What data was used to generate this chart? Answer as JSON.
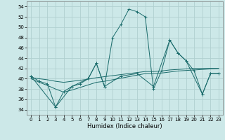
{
  "xlabel": "Humidex (Indice chaleur)",
  "ylabel": "",
  "xlim": [
    -0.5,
    23.5
  ],
  "ylim": [
    33,
    55
  ],
  "yticks": [
    34,
    36,
    38,
    40,
    42,
    44,
    46,
    48,
    50,
    52,
    54
  ],
  "xticks": [
    0,
    1,
    2,
    3,
    4,
    5,
    6,
    7,
    8,
    9,
    10,
    11,
    12,
    13,
    14,
    15,
    16,
    17,
    18,
    19,
    20,
    21,
    22,
    23
  ],
  "bg_color": "#cce8e8",
  "grid_color": "#b0d0d0",
  "line_color": "#1a6b6b",
  "line1_x": [
    0,
    1,
    2,
    3,
    4,
    5,
    6,
    7,
    8,
    9,
    10,
    11,
    12,
    13,
    14,
    15,
    16,
    17,
    18,
    19,
    20,
    21,
    22,
    23
  ],
  "line1_y": [
    40.5,
    39.5,
    39.0,
    34.5,
    37.5,
    38.5,
    39.0,
    40.0,
    43.0,
    38.5,
    48.0,
    50.5,
    53.5,
    53.0,
    52.0,
    38.0,
    41.5,
    47.5,
    45.0,
    43.5,
    41.5,
    37.0,
    41.0,
    41.0
  ],
  "line2_x": [
    0,
    1,
    2,
    3,
    4,
    5,
    6,
    7,
    8,
    9,
    10,
    11,
    12,
    13,
    14,
    15,
    16,
    17,
    18,
    19,
    20,
    21,
    22,
    23
  ],
  "line2_y": [
    40.2,
    40.0,
    39.8,
    39.5,
    39.3,
    39.5,
    39.7,
    39.9,
    40.2,
    40.4,
    40.6,
    40.8,
    41.0,
    41.2,
    41.4,
    41.4,
    41.5,
    41.7,
    41.8,
    41.9,
    42.0,
    42.0,
    42.0,
    42.0
  ],
  "line3_x": [
    0,
    1,
    2,
    3,
    4,
    5,
    6,
    7,
    8,
    9,
    10,
    11,
    12,
    13,
    14,
    15,
    16,
    17,
    18,
    19,
    20,
    21,
    22,
    23
  ],
  "line3_y": [
    40.0,
    39.3,
    38.7,
    38.0,
    37.4,
    37.8,
    38.3,
    38.8,
    39.3,
    39.5,
    39.8,
    40.1,
    40.4,
    40.7,
    41.0,
    41.0,
    41.1,
    41.3,
    41.5,
    41.6,
    41.7,
    41.8,
    41.9,
    42.0
  ],
  "line4_x": [
    0,
    3,
    5,
    7,
    8,
    9,
    11,
    13,
    15,
    17,
    18,
    19,
    21,
    22,
    23
  ],
  "line4_y": [
    40.5,
    34.5,
    38.5,
    40.0,
    43.0,
    38.5,
    40.5,
    41.0,
    38.5,
    47.5,
    45.0,
    43.5,
    37.0,
    41.0,
    41.0
  ]
}
